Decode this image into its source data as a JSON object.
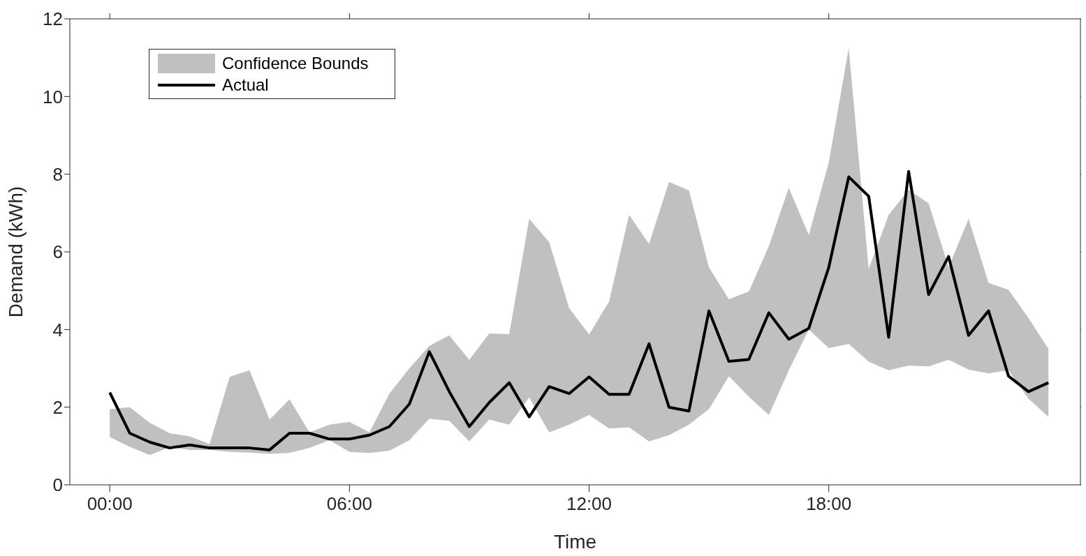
{
  "chart_data": {
    "type": "line",
    "xlabel": "Time",
    "ylabel": "Demand (kWh)",
    "x": [
      0,
      0.5,
      1,
      1.5,
      2,
      2.5,
      3,
      3.5,
      4,
      4.5,
      5,
      5.5,
      6,
      6.5,
      7,
      7.5,
      8,
      8.5,
      9,
      9.5,
      10,
      10.5,
      11,
      11.5,
      12,
      12.5,
      13,
      13.5,
      14,
      14.5,
      15,
      15.5,
      16,
      16.5,
      17,
      17.5,
      18,
      18.5,
      19,
      19.5,
      20,
      20.5,
      21,
      21.5,
      22,
      22.5,
      23,
      23.5
    ],
    "series": [
      {
        "name": "Confidence Bounds",
        "type": "area",
        "color": "#c0c0c0",
        "values": [
          null,
          null,
          null,
          null,
          null,
          null,
          null,
          null,
          null,
          null,
          null,
          null,
          null,
          null,
          null,
          null,
          null,
          null,
          null,
          null,
          null,
          null,
          null,
          null,
          null,
          null,
          null,
          null,
          null,
          null,
          null,
          null,
          null,
          null,
          null,
          null,
          null,
          null,
          null,
          null,
          null,
          null,
          null,
          null,
          null,
          null,
          null,
          null
        ],
        "lower": [
          1.23,
          0.98,
          0.77,
          0.97,
          0.9,
          0.9,
          0.85,
          0.83,
          0.8,
          0.82,
          0.95,
          1.15,
          0.85,
          0.82,
          0.88,
          1.15,
          1.7,
          1.65,
          1.12,
          1.68,
          1.55,
          2.25,
          1.35,
          1.55,
          1.8,
          1.45,
          1.48,
          1.12,
          1.28,
          1.55,
          1.95,
          2.8,
          2.27,
          1.8,
          2.95,
          4.0,
          3.52,
          3.63,
          3.17,
          2.95,
          3.07,
          3.05,
          3.22,
          2.97,
          2.87,
          2.95,
          2.22,
          1.75
        ],
        "upper": [
          1.95,
          2.0,
          1.6,
          1.33,
          1.25,
          1.05,
          2.78,
          2.95,
          1.68,
          2.2,
          1.35,
          1.55,
          1.62,
          1.35,
          2.35,
          3.0,
          3.58,
          3.85,
          3.22,
          3.9,
          3.88,
          6.85,
          6.25,
          4.55,
          3.87,
          4.72,
          6.95,
          6.2,
          7.8,
          7.58,
          5.6,
          4.78,
          4.98,
          6.15,
          7.65,
          6.43,
          8.3,
          11.25,
          5.56,
          6.95,
          7.6,
          7.25,
          5.6,
          6.85,
          5.2,
          5.02,
          4.3,
          3.5
        ]
      },
      {
        "name": "Actual",
        "color": "#000000",
        "values": [
          2.38,
          1.33,
          1.1,
          0.95,
          1.03,
          0.95,
          0.95,
          0.95,
          0.9,
          1.33,
          1.33,
          1.18,
          1.18,
          1.28,
          1.5,
          2.08,
          3.43,
          2.4,
          1.5,
          2.12,
          2.63,
          1.75,
          2.53,
          2.35,
          2.78,
          2.33,
          2.33,
          3.63,
          2.0,
          1.9,
          4.48,
          3.18,
          3.23,
          4.43,
          3.75,
          4.03,
          5.6,
          7.93,
          7.43,
          3.8,
          8.07,
          4.9,
          5.88,
          3.85,
          4.48,
          2.8,
          2.4,
          2.63
        ]
      }
    ],
    "xlim": [
      -1,
      24.3
    ],
    "xticks": [
      {
        "value": 0,
        "label": "00:00"
      },
      {
        "value": 6,
        "label": "06:00"
      },
      {
        "value": 12,
        "label": "12:00"
      },
      {
        "value": 18,
        "label": "18:00"
      }
    ],
    "ylim": [
      0,
      12
    ],
    "yticks": [
      0,
      2,
      4,
      6,
      8,
      10,
      12
    ],
    "grid": false,
    "legend": "top left",
    "line_style": "solid",
    "marker": "none"
  }
}
